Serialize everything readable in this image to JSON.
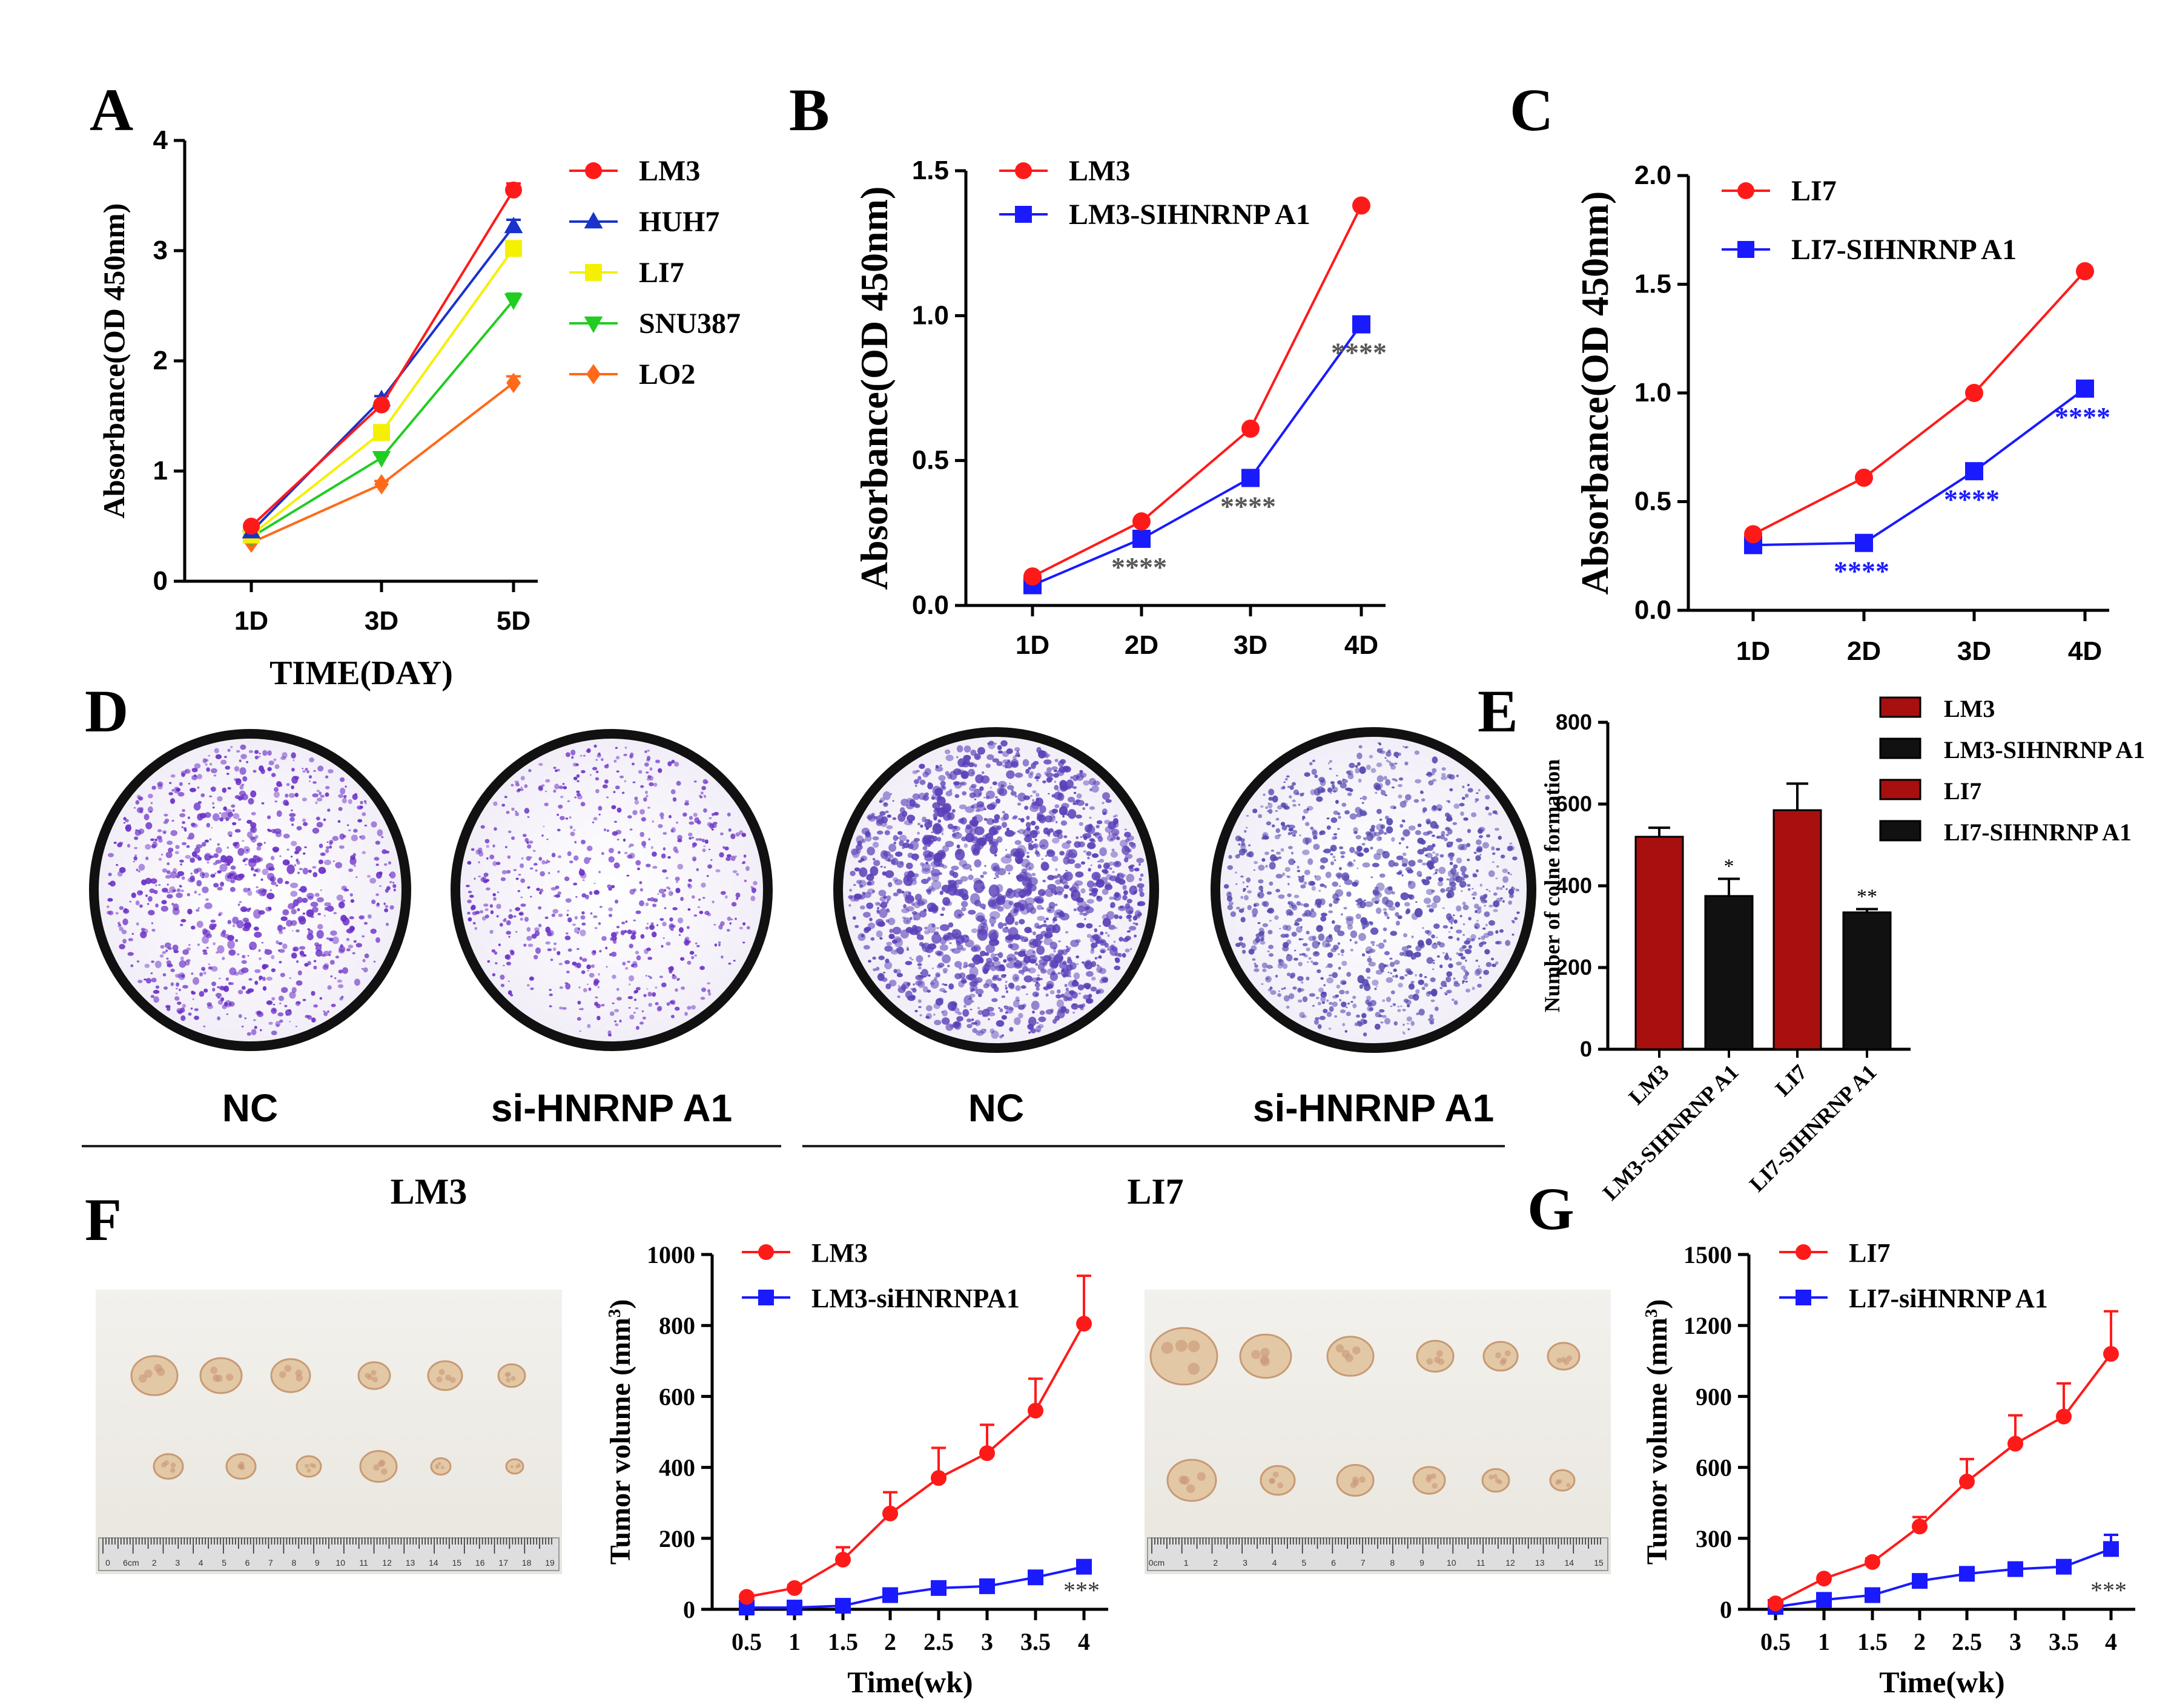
{
  "panels": {
    "A": {
      "letter": "A"
    },
    "B": {
      "letter": "B"
    },
    "C": {
      "letter": "C"
    },
    "D": {
      "letter": "D",
      "dish_labels": [
        "NC",
        "si-HNRNP A1",
        "NC",
        "si-HNRNP A1"
      ]
    },
    "E": {
      "letter": "E"
    },
    "F": {
      "letter": "F",
      "photo_labels": [
        "LM3",
        "LI7"
      ],
      "ruler_text_left": [
        "0",
        "6cm",
        "2",
        "3",
        "4",
        "5",
        "6",
        "7",
        "8",
        "9",
        "10",
        "11",
        "12",
        "13",
        "14",
        "15",
        "16",
        "17",
        "18",
        "19"
      ],
      "ruler_text_right": [
        "0cm",
        "1",
        "2",
        "3",
        "4",
        "5",
        "6",
        "7",
        "8",
        "9",
        "10",
        "11",
        "12",
        "13",
        "14",
        "15"
      ]
    },
    "G": {
      "letter": "G"
    }
  },
  "chart_data": [
    {
      "id": "A",
      "type": "line",
      "x": [
        "1D",
        "3D",
        "5D"
      ],
      "series": [
        {
          "name": "LM3",
          "values": [
            0.5,
            1.6,
            3.55
          ],
          "color": "#ff1a1a",
          "marker": "circle"
        },
        {
          "name": "HUH7",
          "values": [
            0.45,
            1.65,
            3.22
          ],
          "color": "#1a33cc",
          "marker": "triangle"
        },
        {
          "name": "LI7",
          "values": [
            0.42,
            1.35,
            3.02
          ],
          "color": "#f5f000",
          "marker": "square"
        },
        {
          "name": "SNU387",
          "values": [
            0.4,
            1.12,
            2.55
          ],
          "color": "#22cc22",
          "marker": "triangle-down"
        },
        {
          "name": "LO2",
          "values": [
            0.35,
            0.88,
            1.8
          ],
          "color": "#ff6a1a",
          "marker": "diamond"
        }
      ],
      "error": [
        0.02,
        0.03,
        0.06
      ],
      "ylim": [
        0,
        4
      ],
      "yticks": [
        "0",
        "1",
        "2",
        "3",
        "4"
      ],
      "xlabel": "TIME(DAY)",
      "ylabel": "Absorbance(OD 450nm)"
    },
    {
      "id": "B",
      "type": "line",
      "x": [
        "1D",
        "2D",
        "3D",
        "4D"
      ],
      "series": [
        {
          "name": "LM3",
          "values": [
            0.1,
            0.29,
            0.61,
            1.38
          ],
          "color": "#ff1a1a",
          "marker": "circle"
        },
        {
          "name": "LM3-SIHNRNP A1",
          "values": [
            0.07,
            0.23,
            0.44,
            0.97
          ],
          "color": "#1a1aff",
          "marker": "square"
        }
      ],
      "annotations": [
        "",
        "****",
        "****",
        "****"
      ],
      "annotation_color": "#555555",
      "ylim": [
        0,
        1.5
      ],
      "yticks": [
        "0.0",
        "0.5",
        "1.0",
        "1.5"
      ],
      "ylabel": "Absorbance(OD 450nm)"
    },
    {
      "id": "C",
      "type": "line",
      "x": [
        "1D",
        "2D",
        "3D",
        "4D"
      ],
      "series": [
        {
          "name": "LI7",
          "values": [
            0.35,
            0.61,
            1.0,
            1.56
          ],
          "color": "#ff1a1a",
          "marker": "circle"
        },
        {
          "name": "LI7-SIHNRNP A1",
          "values": [
            0.3,
            0.31,
            0.64,
            1.02
          ],
          "color": "#1a1aff",
          "marker": "square"
        }
      ],
      "annotations": [
        "",
        "****",
        "****",
        "****"
      ],
      "annotation_color": "#1a1aff",
      "ylim": [
        0,
        2.0
      ],
      "yticks": [
        "0.0",
        "0.5",
        "1.0",
        "1.5",
        "2.0"
      ],
      "ylabel": "Absorbance(OD 450nm)"
    },
    {
      "id": "E",
      "type": "bar",
      "categories": [
        "LM3",
        "LM3-SIHNRNP A1",
        "LI7",
        "LI7-SIHNRNP A1"
      ],
      "values": [
        520,
        375,
        585,
        335
      ],
      "errors": [
        22,
        42,
        65,
        8
      ],
      "colors": [
        "#a80f0f",
        "#111111",
        "#a80f0f",
        "#111111"
      ],
      "annotations": [
        "",
        "*",
        "",
        "**"
      ],
      "ylim": [
        0,
        800
      ],
      "yticks": [
        "0",
        "200",
        "400",
        "600",
        "800"
      ],
      "ylabel": "Number of colne formation"
    },
    {
      "id": "F",
      "type": "line",
      "x": [
        "0.5",
        "1",
        "1.5",
        "2",
        "2.5",
        "3",
        "3.5",
        "4"
      ],
      "series": [
        {
          "name": "LM3",
          "values": [
            35,
            60,
            140,
            270,
            370,
            440,
            560,
            805
          ],
          "errors": [
            5,
            8,
            35,
            60,
            85,
            80,
            90,
            135
          ],
          "color": "#ff1a1a",
          "marker": "circle"
        },
        {
          "name": "LM3-siHNRNPA1",
          "values": [
            5,
            5,
            10,
            40,
            60,
            65,
            90,
            120
          ],
          "errors": [
            2,
            2,
            3,
            5,
            6,
            6,
            8,
            10
          ],
          "color": "#1a1aff",
          "marker": "square"
        }
      ],
      "end_annotation": "***",
      "ylim": [
        0,
        1000
      ],
      "yticks": [
        "0",
        "200",
        "400",
        "600",
        "800",
        "1000"
      ],
      "xlabel": "Time(wk)",
      "ylabel": "Tumor volume (mm",
      "ylabel_sup": "3",
      "ylabel_end": ")"
    },
    {
      "id": "G",
      "type": "line",
      "x": [
        "0.5",
        "1",
        "1.5",
        "2",
        "2.5",
        "3",
        "3.5",
        "4"
      ],
      "series": [
        {
          "name": "LI7",
          "values": [
            25,
            130,
            200,
            350,
            540,
            700,
            815,
            1080
          ],
          "errors": [
            5,
            10,
            15,
            40,
            95,
            120,
            140,
            180
          ],
          "color": "#ff1a1a",
          "marker": "circle"
        },
        {
          "name": "LI7-siHNRNP A1",
          "values": [
            10,
            40,
            60,
            120,
            150,
            170,
            180,
            255
          ],
          "errors": [
            3,
            5,
            6,
            10,
            12,
            15,
            18,
            60
          ],
          "color": "#1a1aff",
          "marker": "square"
        }
      ],
      "end_annotation": "***",
      "ylim": [
        0,
        1500
      ],
      "yticks": [
        "0",
        "300",
        "600",
        "900",
        "1200",
        "1500"
      ],
      "xlabel": "Time(wk)",
      "ylabel": "Tumor volume (mm",
      "ylabel_sup": "3",
      "ylabel_end": ")"
    }
  ]
}
